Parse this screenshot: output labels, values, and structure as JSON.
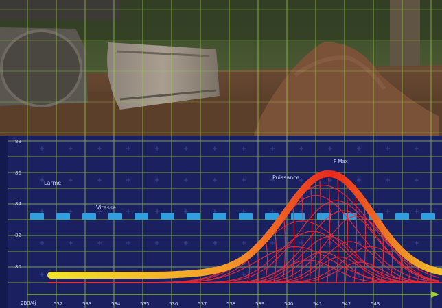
{
  "labels": {
    "larme": "Larme",
    "vitesse": "Vitesse",
    "puissance": "Puissance",
    "pmax": "P Max",
    "axis_origin": "2B8/4j"
  },
  "y_ticks": [
    "88",
    "86",
    "84",
    "82",
    "80"
  ],
  "x_ticks": [
    "532",
    "533",
    "534",
    "535",
    "536",
    "537",
    "538",
    "539",
    "540",
    "541",
    "542",
    "543"
  ],
  "colors": {
    "panel": "#1b2160",
    "grid": "#9ccc3c",
    "dash": "#2f9fe0",
    "curve_start": "#f3e22a",
    "curve_peak": "#e8281e",
    "mesh": "#ee2a3a"
  },
  "scene": {
    "description_icons": [
      "bulldozer-blade-icon",
      "dirt-mound-icon",
      "palm-trunk-icon"
    ]
  }
}
